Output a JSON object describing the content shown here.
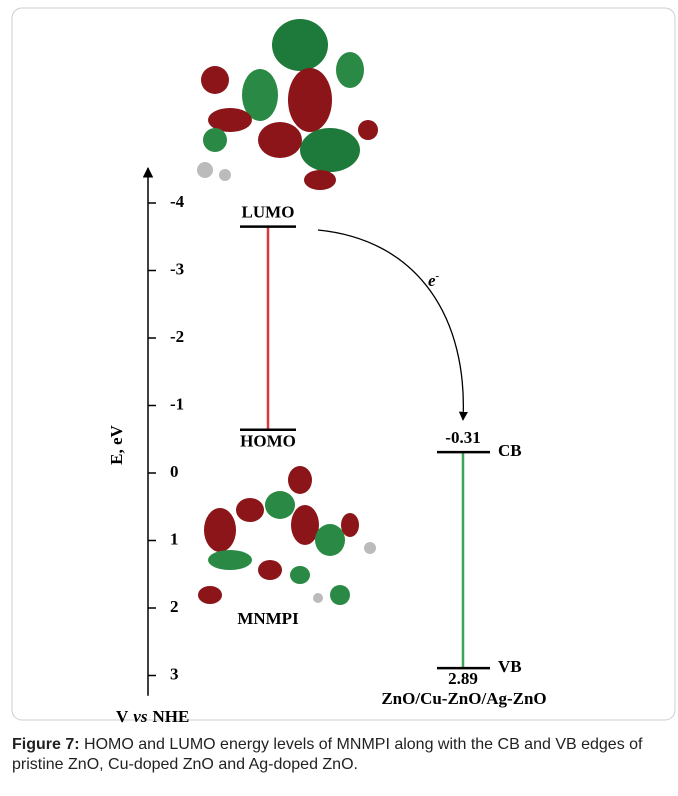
{
  "diagram": {
    "axis": {
      "label": "E, eV",
      "lim": [
        -4.4,
        3.3
      ],
      "ticks": [
        -4,
        -3,
        -2,
        -1,
        0,
        1,
        2,
        3
      ],
      "footer": {
        "v": "V",
        "vs": "vs",
        "nhe": "NHE"
      }
    },
    "molecule": {
      "label": "MNMPI",
      "levels": [
        {
          "label": "LUMO",
          "value": -3.65
        },
        {
          "label": "HOMO",
          "value": -0.64
        }
      ],
      "color": "#d9393e"
    },
    "semiconductor": {
      "label": "ZnO/Cu-ZnO/Ag-ZnO",
      "levels": [
        {
          "label": "CB",
          "value": -0.31
        },
        {
          "label": "VB",
          "value": 2.89
        }
      ],
      "color": "#3aa655"
    },
    "electron": {
      "text": "e",
      "superscript": "-"
    },
    "caption": {
      "number": "Figure 7:",
      "text": "HOMO and LUMO energy levels of MNMPI along with the CB and VB edges of pristine ZnO, Cu-doped ZnO and Ag-doped ZnO."
    }
  }
}
